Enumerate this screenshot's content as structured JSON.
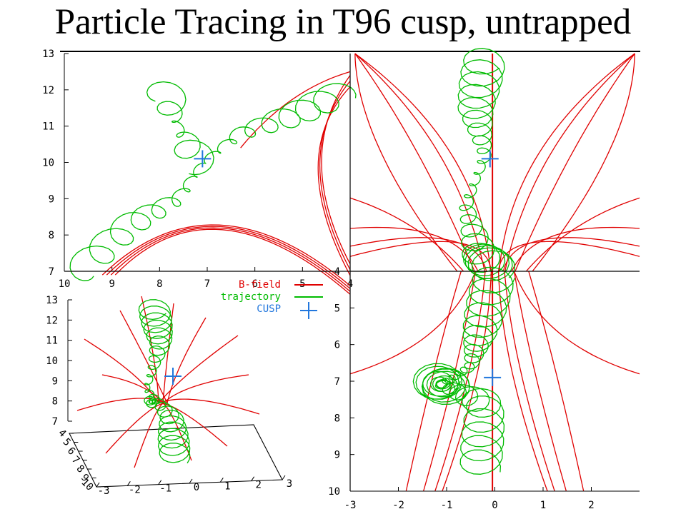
{
  "slide": {
    "title": "Particle Tracing in T96 cusp, untrapped"
  },
  "colors": {
    "b_field": "#e00000",
    "trajectory": "#00bb00",
    "cusp": "#2277dd",
    "axes": "#000000"
  },
  "chart_data": [
    {
      "type": "line",
      "panel": "top-left",
      "plane": "xz",
      "title": "",
      "xlabel": "",
      "ylabel": "",
      "xlim": [
        10,
        4
      ],
      "ylim": [
        7,
        13
      ],
      "x_ticks": [
        "10",
        "9",
        "8",
        "7",
        "6",
        "5",
        "4"
      ],
      "y_ticks": [
        "7",
        "8",
        "9",
        "10",
        "11",
        "12",
        "13"
      ],
      "cusp": {
        "x": 7.1,
        "y": 10.1
      },
      "series": [
        {
          "name": "B-field",
          "style": "field lines"
        },
        {
          "name": "trajectory",
          "style": "gyrating path"
        }
      ]
    },
    {
      "type": "line",
      "panel": "top-right",
      "plane": "yz",
      "title": "",
      "xlim": [
        -3,
        3
      ],
      "ylim": [
        7,
        13
      ],
      "cusp": {
        "x": -0.1,
        "y": 10.1
      },
      "series": [
        {
          "name": "B-field",
          "style": "field lines"
        },
        {
          "name": "trajectory",
          "style": "gyrating path"
        }
      ]
    },
    {
      "type": "line",
      "panel": "bottom-left",
      "plane": "3d",
      "title": "",
      "z_ticks": [
        "7",
        "8",
        "9",
        "10",
        "11",
        "12",
        "13"
      ],
      "x_ticks": [
        "-3",
        "-2",
        "-1",
        "0",
        "1",
        "2",
        "3"
      ],
      "depth_ticks": [
        "4",
        "5",
        "6",
        "7",
        "8",
        "9",
        "10"
      ],
      "legend": {
        "position": "top-right",
        "entries": [
          {
            "label": "B-field",
            "key": "line"
          },
          {
            "label": "trajectory",
            "key": "line"
          },
          {
            "label": "CUSP",
            "key": "plus"
          }
        ]
      },
      "series": [
        {
          "name": "B-field",
          "style": "field lines"
        },
        {
          "name": "trajectory",
          "style": "gyrating path"
        }
      ]
    },
    {
      "type": "line",
      "panel": "bottom-right",
      "plane": "xy",
      "title": "",
      "xlim": [
        -3,
        3
      ],
      "ylim": [
        4,
        10
      ],
      "x_ticks": [
        "-3",
        "-2",
        "-1",
        "0",
        "1",
        "2"
      ],
      "y_ticks": [
        "4",
        "5",
        "6",
        "7",
        "8",
        "9",
        "10"
      ],
      "cusp": {
        "x": -0.05,
        "y": 6.9
      },
      "series": [
        {
          "name": "B-field",
          "style": "field lines"
        },
        {
          "name": "trajectory",
          "style": "gyrating path"
        }
      ]
    }
  ]
}
